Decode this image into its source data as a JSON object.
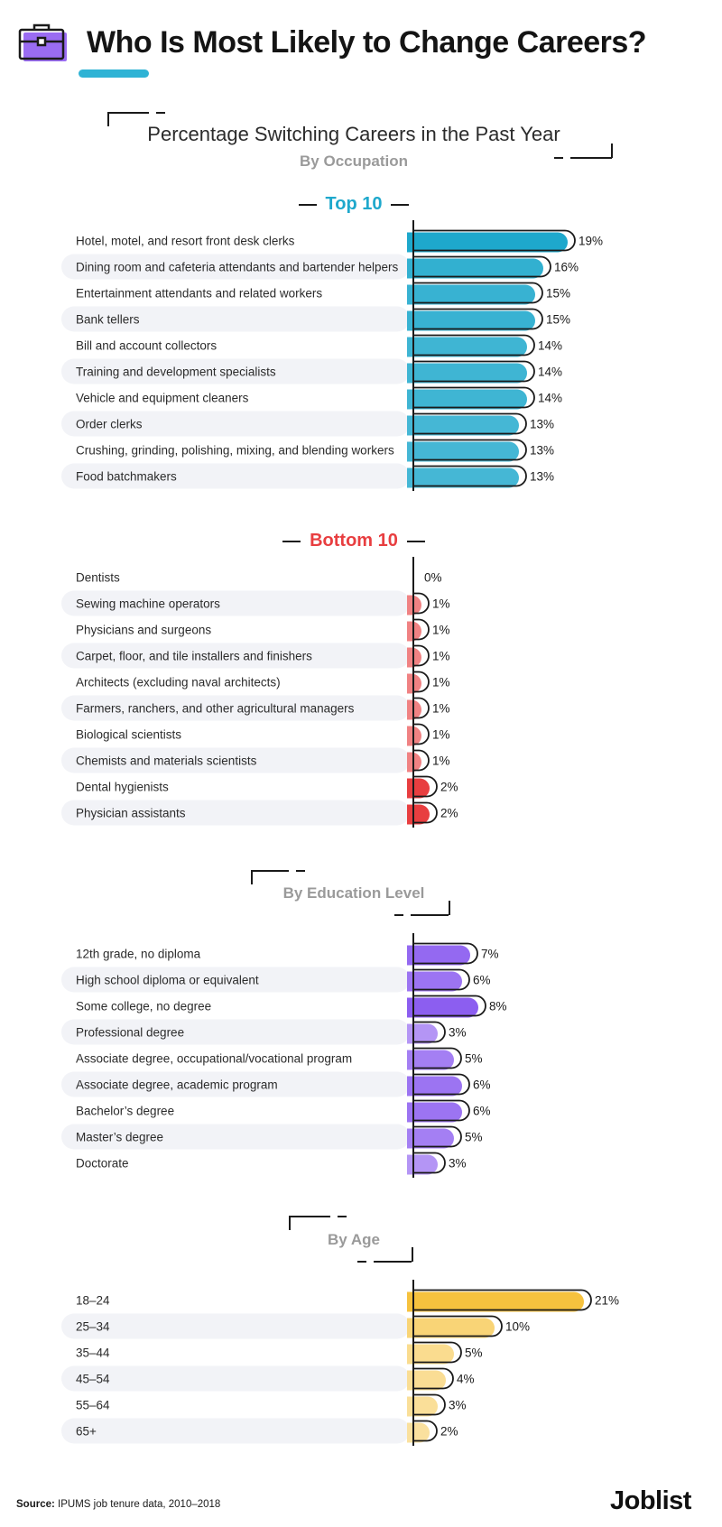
{
  "title": "Who Is Most Likely to Change Careers?",
  "header_icon": "briefcase-icon",
  "colors": {
    "accent": "#2fb3d5",
    "top_group": "#1ea8cc",
    "bottom_group": "#e83e40",
    "education": "#8c5ef0",
    "age": "#f6c23e",
    "row_band": "#f2f3f7"
  },
  "section_occupation": {
    "title": "Percentage Switching Careers in the Past Year",
    "subtitle": "By Occupation"
  },
  "section_education": {
    "subtitle": "By Education Level"
  },
  "section_age": {
    "subtitle": "By Age"
  },
  "chart_data": [
    {
      "type": "bar",
      "orientation": "horizontal",
      "title": "Top 10",
      "unit": "%",
      "categories": [
        "Hotel, motel, and resort front desk clerks",
        "Dining room and cafeteria attendants and bartender helpers",
        "Entertainment attendants and related workers",
        "Bank tellers",
        "Bill and account collectors",
        "Training and development specialists",
        "Vehicle and equipment cleaners",
        "Order clerks",
        "Crushing, grinding, polishing, mixing, and blending workers",
        "Food batchmakers"
      ],
      "values": [
        19,
        16,
        15,
        15,
        14,
        14,
        14,
        13,
        13,
        13
      ],
      "labels": [
        "19%",
        "16%",
        "15%",
        "15%",
        "14%",
        "14%",
        "14%",
        "13%",
        "13%",
        "13%"
      ],
      "color": "#1ea8cc"
    },
    {
      "type": "bar",
      "orientation": "horizontal",
      "title": "Bottom 10",
      "unit": "%",
      "categories": [
        "Dentists",
        "Sewing machine operators",
        "Physicians and surgeons",
        "Carpet, floor, and tile installers and finishers",
        "Architects (excluding naval architects)",
        "Farmers, ranchers, and other agricultural managers",
        "Biological scientists",
        "Chemists and materials scientists",
        "Dental hygienists",
        "Physician assistants"
      ],
      "values": [
        0,
        1,
        1,
        1,
        1,
        1,
        1,
        1,
        2,
        2
      ],
      "labels": [
        "0%",
        "1%",
        "1%",
        "1%",
        "1%",
        "1%",
        "1%",
        "1%",
        "2%",
        "2%"
      ],
      "color": "#e83e40"
    },
    {
      "type": "bar",
      "orientation": "horizontal",
      "title": "By Education Level",
      "unit": "%",
      "categories": [
        "12th grade, no diploma",
        "High school diploma or equivalent",
        "Some college, no degree",
        "Professional degree",
        "Associate degree, occupational/vocational program",
        "Associate degree, academic program",
        "Bachelor’s degree",
        "Master’s degree",
        "Doctorate"
      ],
      "values": [
        7,
        6,
        8,
        3,
        5,
        6,
        6,
        5,
        3
      ],
      "labels": [
        "7%",
        "6%",
        "8%",
        "3%",
        "5%",
        "6%",
        "6%",
        "5%",
        "3%"
      ],
      "color": "#8c5ef0"
    },
    {
      "type": "bar",
      "orientation": "horizontal",
      "title": "By Age",
      "unit": "%",
      "categories": [
        "18–24",
        "25–34",
        "35–44",
        "45–54",
        "55–64",
        "65+"
      ],
      "values": [
        21,
        10,
        5,
        4,
        3,
        2
      ],
      "labels": [
        "21%",
        "10%",
        "5%",
        "4%",
        "3%",
        "2%"
      ],
      "color": "#f6c23e"
    }
  ],
  "footer": {
    "source_label": "Source:",
    "source_text": "IPUMS job tenure data, 2010–2018",
    "brand": "Joblist"
  }
}
